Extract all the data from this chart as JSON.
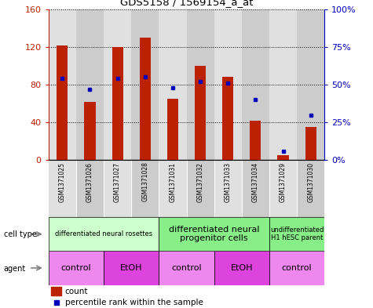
{
  "title": "GDS5158 / 1569154_a_at",
  "samples": [
    "GSM1371025",
    "GSM1371026",
    "GSM1371027",
    "GSM1371028",
    "GSM1371031",
    "GSM1371032",
    "GSM1371033",
    "GSM1371034",
    "GSM1371029",
    "GSM1371030"
  ],
  "counts": [
    122,
    62,
    120,
    130,
    65,
    100,
    88,
    42,
    5,
    35
  ],
  "percentiles": [
    54,
    47,
    54,
    55,
    48,
    52,
    51,
    40,
    6,
    30
  ],
  "ylim_left": [
    0,
    160
  ],
  "ylim_right": [
    0,
    100
  ],
  "yticks_left": [
    0,
    40,
    80,
    120,
    160
  ],
  "yticks_right": [
    0,
    25,
    50,
    75,
    100
  ],
  "ytick_labels_left": [
    "0",
    "40",
    "80",
    "120",
    "160"
  ],
  "ytick_labels_right": [
    "0%",
    "25%",
    "50%",
    "75%",
    "100%"
  ],
  "bar_color": "#bb2200",
  "dot_color": "#0000bb",
  "cell_type_groups": [
    {
      "label": "differentiated neural rosettes",
      "start": 0,
      "end": 3,
      "color": "#ccffcc",
      "fontsize": 6
    },
    {
      "label": "differentiated neural\nprogenitor cells",
      "start": 4,
      "end": 7,
      "color": "#88ee88",
      "fontsize": 8
    },
    {
      "label": "undifferentiated\nH1 hESC parent",
      "start": 8,
      "end": 9,
      "color": "#88ee88",
      "fontsize": 6
    }
  ],
  "agent_groups": [
    {
      "label": "control",
      "start": 0,
      "end": 1,
      "color": "#ee88ee"
    },
    {
      "label": "EtOH",
      "start": 2,
      "end": 3,
      "color": "#dd44dd"
    },
    {
      "label": "control",
      "start": 4,
      "end": 5,
      "color": "#ee88ee"
    },
    {
      "label": "EtOH",
      "start": 6,
      "end": 7,
      "color": "#dd44dd"
    },
    {
      "label": "control",
      "start": 8,
      "end": 9,
      "color": "#ee88ee"
    }
  ],
  "bg_colors": [
    "#e0e0e0",
    "#cccccc"
  ],
  "legend_count_color": "#bb2200",
  "legend_dot_color": "#0000bb"
}
